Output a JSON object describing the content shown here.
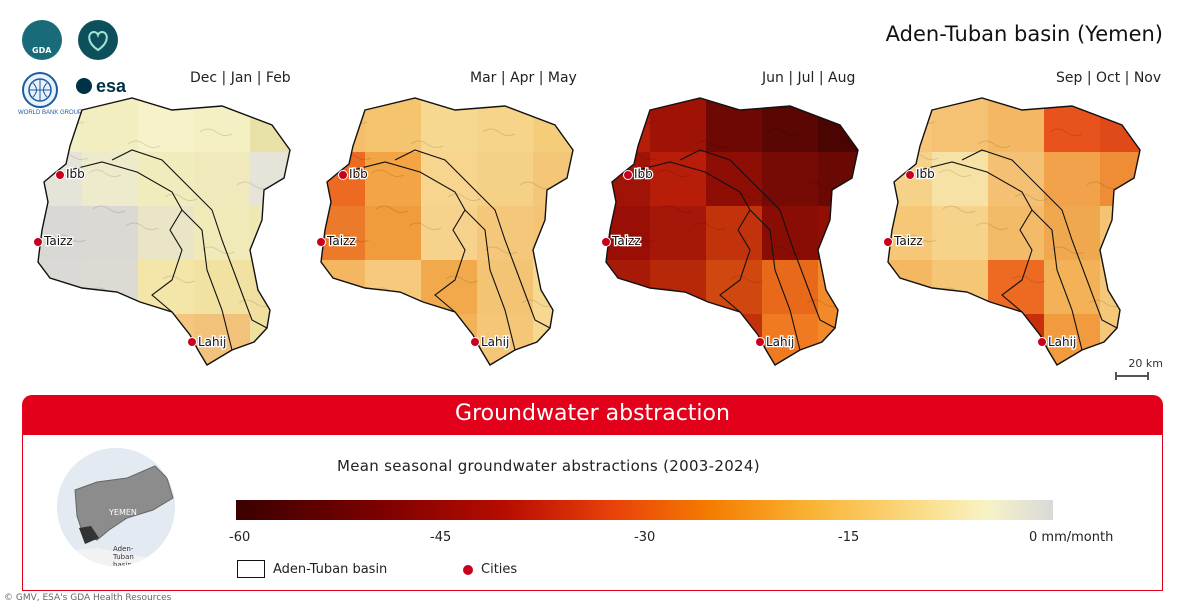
{
  "title": "Aden-Tuban basin (Yemen)",
  "logos": {
    "gda": "GDA",
    "worldbank": "WORLD BANK GROUP",
    "esa": "esa"
  },
  "panels": [
    {
      "season": "Dec | Jan | Feb",
      "grid": [
        [
          "#f3efc4",
          "#f2eebf",
          "#f6f2c9",
          "#f4f0c3",
          "#e8e2a8"
        ],
        [
          "#e6e4d8",
          "#eeebcc",
          "#f1ecbc",
          "#efe9bb",
          "#e6e4d8"
        ],
        [
          "#d9d8d4",
          "#dad9d4",
          "#e9e5c6",
          "#f0eab8",
          "#eee8b3"
        ],
        [
          "#dad9d5",
          "#dcdad3",
          "#f4e5a8",
          "#f2e2a2",
          "#f0df9e"
        ],
        [
          "#ffffff",
          "#ffffff",
          "#f4c680",
          "#f2c27a",
          "#ffffff"
        ]
      ]
    },
    {
      "season": "Mar | Apr | May",
      "grid": [
        [
          "#f6be6a",
          "#f5c46f",
          "#f7d890",
          "#f6d48a",
          "#f4cc7a"
        ],
        [
          "#ec6a22",
          "#f3a444",
          "#f7d58e",
          "#f5d087",
          "#f3c777"
        ],
        [
          "#ec7a2b",
          "#f09b3c",
          "#f6d28c",
          "#f5c77a",
          "#f4c374"
        ],
        [
          "#f4b660",
          "#f6c97c",
          "#f2a94c",
          "#f3c474",
          "#f6d891"
        ],
        [
          "#ffffff",
          "#ffffff",
          "#f2b257",
          "#f5c578",
          "#ffffff"
        ]
      ]
    },
    {
      "season": "Jun | Jul | Aug",
      "grid": [
        [
          "#b51e08",
          "#9e1305",
          "#6e0804",
          "#5a0603",
          "#4a0402"
        ],
        [
          "#a01407",
          "#b71d08",
          "#8e0e05",
          "#760a04",
          "#6a0803"
        ],
        [
          "#990f05",
          "#a51708",
          "#c2330c",
          "#8a0d05",
          "#8f0f05"
        ],
        [
          "#a81a08",
          "#b72808",
          "#d0480f",
          "#e8691a",
          "#f28a2a"
        ],
        [
          "#ffffff",
          "#ffffff",
          "#c1310b",
          "#ef7a22",
          "#ffffff"
        ]
      ]
    },
    {
      "season": "Sep | Oct | Nov",
      "grid": [
        [
          "#f6c778",
          "#f5c273",
          "#f4b864",
          "#e8521c",
          "#e04a18"
        ],
        [
          "#f6d289",
          "#f7e2a6",
          "#f4c174",
          "#f1a24a",
          "#ef8c36"
        ],
        [
          "#f5c777",
          "#f6d28a",
          "#f3ba68",
          "#f0a84e",
          "#f4c474"
        ],
        [
          "#f4b862",
          "#f4c676",
          "#ec6a22",
          "#f3b258",
          "#f5c778"
        ],
        [
          "#ffffff",
          "#ffffff",
          "#c6300b",
          "#f19a3e",
          "#ffffff"
        ]
      ]
    }
  ],
  "cities": [
    "Ibb",
    "Taizz",
    "Lahij"
  ],
  "scalebar": "20 km",
  "banner": "Groundwater abstraction",
  "legend": {
    "title": "Mean seasonal groundwater abstractions (2003-2024)",
    "ticks": [
      "-60",
      "-45",
      "-30",
      "-15",
      "0 mm/month"
    ],
    "tick_values": [
      -60,
      -45,
      -30,
      -15,
      0
    ],
    "range": [
      -60,
      0
    ],
    "basin_label": "Aden-Tuban basin",
    "cities_label": "Cities",
    "city_color": "#c8001e"
  },
  "inset": {
    "country": "YEMEN",
    "basin": "Aden-Tuban basin"
  },
  "credit": "© GMV, ESA's GDA Health Resources"
}
